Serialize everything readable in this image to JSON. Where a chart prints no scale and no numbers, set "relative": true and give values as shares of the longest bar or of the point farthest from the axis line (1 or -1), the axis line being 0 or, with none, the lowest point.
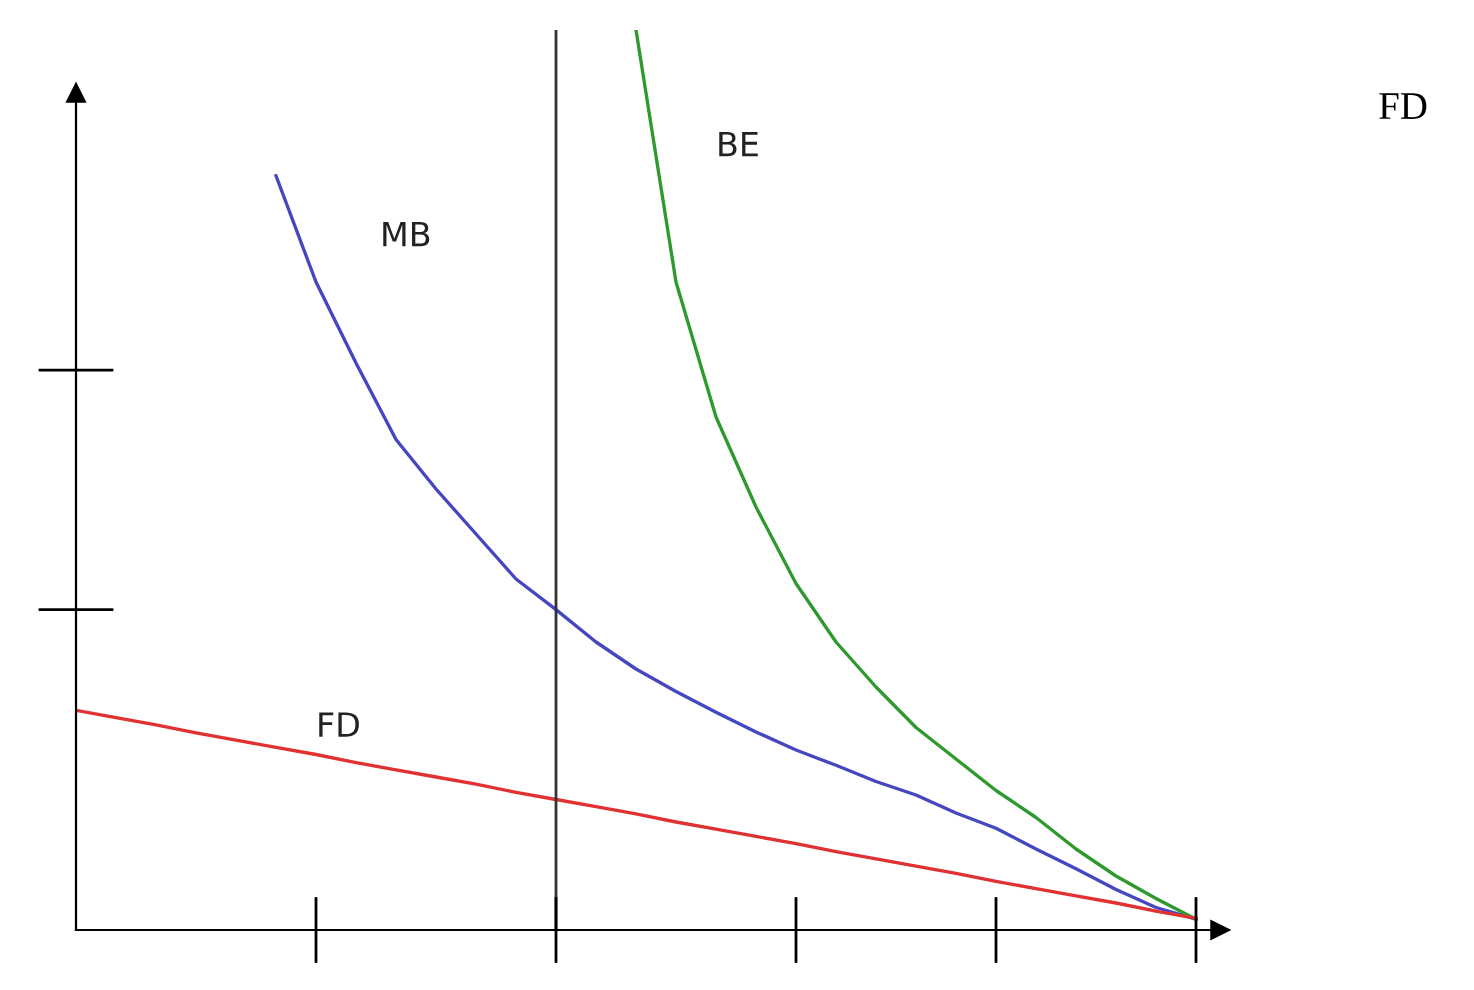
{
  "chart_data": {
    "type": "line",
    "relative": true,
    "categories": [
      null,
      null,
      null,
      null,
      null,
      null,
      null,
      null,
      null,
      null,
      null,
      null,
      null,
      null,
      null,
      null,
      null,
      null,
      null,
      null,
      null,
      null,
      null,
      null,
      null,
      null,
      null,
      null,
      null
    ],
    "series": [
      {
        "name": "MB",
        "color": "#4646c0",
        "values": [
          null,
          null,
          null,
          null,
          null,
          0.838,
          0.72,
          0.63,
          0.545,
          0.49,
          0.44,
          0.39,
          0.356,
          0.32,
          0.29,
          0.265,
          0.242,
          0.22,
          0.2,
          0.183,
          0.165,
          0.15,
          0.13,
          0.113,
          0.09,
          0.068,
          0.045,
          0.025,
          0.012
        ]
      },
      {
        "name": "BE",
        "color": "#2e9a2e",
        "values": [
          null,
          null,
          null,
          null,
          null,
          null,
          null,
          null,
          null,
          null,
          null,
          null,
          null,
          null,
          1.0,
          0.72,
          0.57,
          0.47,
          0.385,
          0.32,
          0.27,
          0.225,
          0.19,
          0.155,
          0.125,
          0.09,
          0.06,
          0.035,
          0.012
        ]
      },
      {
        "name": "FD",
        "color": "#e03232",
        "values": [
          0.244,
          0.236,
          0.228,
          0.219,
          0.211,
          0.203,
          0.195,
          0.186,
          0.178,
          0.17,
          0.162,
          0.153,
          0.145,
          0.137,
          0.129,
          0.12,
          0.112,
          0.104,
          0.096,
          0.087,
          0.079,
          0.071,
          0.063,
          0.054,
          0.046,
          0.038,
          0.03,
          0.021,
          0.013
        ]
      }
    ],
    "annotations": [
      "FD"
    ],
    "legend": false,
    "marker": "none",
    "line_style": "solid"
  }
}
